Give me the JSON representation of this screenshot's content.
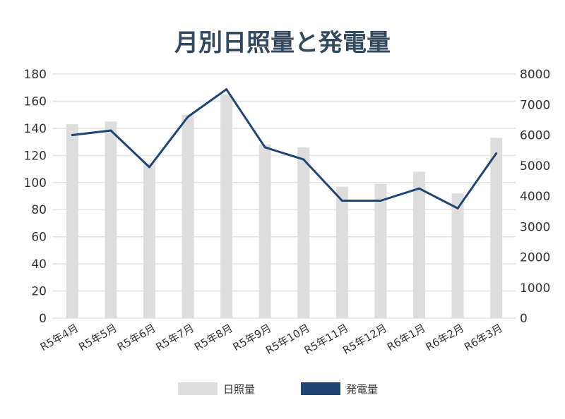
{
  "chart_data": {
    "type": "bar",
    "title": "月別日照量と発電量",
    "categories": [
      "R5年4月",
      "R5年5月",
      "R5年6月",
      "R5年7月",
      "R5年8月",
      "R5年9月",
      "R5年10月",
      "R5年11月",
      "R5年12月",
      "R6年1月",
      "R6年2月",
      "R6年3月"
    ],
    "series": [
      {
        "name": "日照量",
        "type": "bar",
        "axis": "left",
        "color": "#dddddd",
        "values": [
          143,
          145,
          114,
          150,
          165,
          128,
          126,
          97,
          99,
          108,
          92,
          133
        ]
      },
      {
        "name": "発電量",
        "type": "line",
        "axis": "right",
        "color": "#1f4572",
        "values": [
          6000,
          6150,
          4950,
          6600,
          7500,
          5600,
          5200,
          3850,
          3850,
          4250,
          3600,
          5400
        ]
      }
    ],
    "y_left": {
      "min": 0,
      "max": 180,
      "ticks": [
        "0",
        "20",
        "40",
        "60",
        "80",
        "100",
        "120",
        "140",
        "160",
        "180"
      ]
    },
    "y_right": {
      "min": 0,
      "max": 8000,
      "ticks": [
        "0",
        "1000",
        "2000",
        "3000",
        "4000",
        "5000",
        "6000",
        "7000",
        "8000"
      ]
    },
    "grid": true,
    "legend_position": "bottom"
  }
}
